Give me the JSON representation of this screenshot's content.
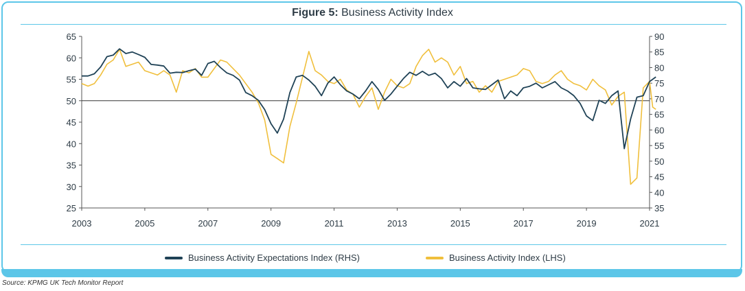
{
  "header": {
    "figure_label": "Figure 5:",
    "title": "Business Activity Index"
  },
  "source": "Source: KPMG UK Tech Monitor Report",
  "colors": {
    "expectations": "#1f4256",
    "activity": "#f0bf3c",
    "frame_accent": "#5cc6e8"
  },
  "chart_data": {
    "type": "line",
    "x_ticks": [
      "2003",
      "2005",
      "2007",
      "2009",
      "2011",
      "2013",
      "2015",
      "2017",
      "2019",
      "2021"
    ],
    "xlim": [
      2003,
      2021
    ],
    "left_axis": {
      "ticks": [
        "65",
        "60",
        "55",
        "50",
        "45",
        "40",
        "35",
        "30",
        "25"
      ],
      "ylim": [
        25,
        65
      ]
    },
    "right_axis": {
      "ticks": [
        "90",
        "85",
        "80",
        "75",
        "70",
        "65",
        "60",
        "55",
        "50",
        "45",
        "40",
        "35"
      ],
      "ylim": [
        35,
        90
      ]
    },
    "reference_line_left": 50,
    "legend_position": "bottom",
    "series": [
      {
        "name": "Business Activity Expectations Index (RHS)",
        "axis": "right",
        "points": [
          [
            2003.0,
            77.3
          ],
          [
            2003.2,
            77.3
          ],
          [
            2003.4,
            78.0
          ],
          [
            2003.6,
            80.2
          ],
          [
            2003.8,
            83.5
          ],
          [
            2004.0,
            84.0
          ],
          [
            2004.2,
            86.0
          ],
          [
            2004.4,
            84.5
          ],
          [
            2004.6,
            85.0
          ],
          [
            2004.8,
            84.2
          ],
          [
            2005.0,
            83.3
          ],
          [
            2005.2,
            81.0
          ],
          [
            2005.4,
            80.8
          ],
          [
            2005.6,
            80.5
          ],
          [
            2005.8,
            78.2
          ],
          [
            2006.0,
            78.5
          ],
          [
            2006.2,
            78.4
          ],
          [
            2006.4,
            79.0
          ],
          [
            2006.6,
            79.5
          ],
          [
            2006.8,
            77.5
          ],
          [
            2007.0,
            81.3
          ],
          [
            2007.2,
            82.0
          ],
          [
            2007.4,
            80.0
          ],
          [
            2007.6,
            78.3
          ],
          [
            2007.8,
            77.5
          ],
          [
            2008.0,
            76.0
          ],
          [
            2008.2,
            72.0
          ],
          [
            2008.4,
            71.0
          ],
          [
            2008.6,
            69.5
          ],
          [
            2008.8,
            66.5
          ],
          [
            2009.0,
            62.0
          ],
          [
            2009.2,
            59.0
          ],
          [
            2009.4,
            63.5
          ],
          [
            2009.6,
            72.0
          ],
          [
            2009.8,
            77.0
          ],
          [
            2010.0,
            77.5
          ],
          [
            2010.2,
            76.0
          ],
          [
            2010.4,
            74.0
          ],
          [
            2010.6,
            71.0
          ],
          [
            2010.8,
            75.0
          ],
          [
            2011.0,
            77.0
          ],
          [
            2011.2,
            74.5
          ],
          [
            2011.4,
            72.5
          ],
          [
            2011.6,
            71.5
          ],
          [
            2011.8,
            70.0
          ],
          [
            2012.0,
            72.5
          ],
          [
            2012.2,
            75.5
          ],
          [
            2012.4,
            73.0
          ],
          [
            2012.6,
            69.5
          ],
          [
            2012.8,
            71.5
          ],
          [
            2013.0,
            74.0
          ],
          [
            2013.2,
            76.5
          ],
          [
            2013.4,
            78.5
          ],
          [
            2013.6,
            77.5
          ],
          [
            2013.8,
            78.8
          ],
          [
            2014.0,
            77.5
          ],
          [
            2014.2,
            78.2
          ],
          [
            2014.4,
            76.5
          ],
          [
            2014.6,
            73.5
          ],
          [
            2014.8,
            75.5
          ],
          [
            2015.0,
            74.0
          ],
          [
            2015.2,
            76.5
          ],
          [
            2015.4,
            73.5
          ],
          [
            2015.6,
            73.2
          ],
          [
            2015.8,
            73.0
          ],
          [
            2016.0,
            74.5
          ],
          [
            2016.2,
            76.0
          ],
          [
            2016.4,
            70.0
          ],
          [
            2016.6,
            72.5
          ],
          [
            2016.8,
            71.0
          ],
          [
            2017.0,
            73.5
          ],
          [
            2017.2,
            74.0
          ],
          [
            2017.4,
            75.0
          ],
          [
            2017.6,
            73.5
          ],
          [
            2017.8,
            74.5
          ],
          [
            2018.0,
            75.5
          ],
          [
            2018.2,
            73.5
          ],
          [
            2018.4,
            72.5
          ],
          [
            2018.6,
            71.0
          ],
          [
            2018.8,
            68.5
          ],
          [
            2019.0,
            64.5
          ],
          [
            2019.2,
            63.0
          ],
          [
            2019.4,
            69.5
          ],
          [
            2019.6,
            68.5
          ],
          [
            2019.8,
            71.0
          ],
          [
            2020.0,
            72.5
          ],
          [
            2020.2,
            54.0
          ],
          [
            2020.4,
            63.5
          ],
          [
            2020.6,
            70.5
          ],
          [
            2020.8,
            71.0
          ],
          [
            2021.0,
            75.5
          ],
          [
            2021.2,
            77.0
          ]
        ]
      },
      {
        "name": "Business Activity Index (LHS)",
        "axis": "left",
        "points": [
          [
            2003.0,
            54.0
          ],
          [
            2003.2,
            53.4
          ],
          [
            2003.4,
            54.0
          ],
          [
            2003.6,
            56.0
          ],
          [
            2003.8,
            58.5
          ],
          [
            2004.0,
            59.5
          ],
          [
            2004.2,
            62.0
          ],
          [
            2004.4,
            58.0
          ],
          [
            2004.6,
            58.5
          ],
          [
            2004.8,
            59.0
          ],
          [
            2005.0,
            57.0
          ],
          [
            2005.2,
            56.5
          ],
          [
            2005.4,
            56.0
          ],
          [
            2005.6,
            57.0
          ],
          [
            2005.8,
            56.0
          ],
          [
            2006.0,
            52.0
          ],
          [
            2006.2,
            57.0
          ],
          [
            2006.4,
            56.5
          ],
          [
            2006.6,
            57.5
          ],
          [
            2006.8,
            55.5
          ],
          [
            2007.0,
            55.5
          ],
          [
            2007.2,
            57.5
          ],
          [
            2007.4,
            59.5
          ],
          [
            2007.6,
            59.0
          ],
          [
            2007.8,
            57.5
          ],
          [
            2008.0,
            56.0
          ],
          [
            2008.2,
            54.0
          ],
          [
            2008.4,
            52.0
          ],
          [
            2008.6,
            49.5
          ],
          [
            2008.8,
            45.5
          ],
          [
            2009.0,
            37.5
          ],
          [
            2009.2,
            36.5
          ],
          [
            2009.4,
            35.5
          ],
          [
            2009.6,
            44.0
          ],
          [
            2009.8,
            49.5
          ],
          [
            2010.0,
            55.5
          ],
          [
            2010.2,
            61.5
          ],
          [
            2010.4,
            57.0
          ],
          [
            2010.6,
            56.0
          ],
          [
            2010.8,
            54.5
          ],
          [
            2011.0,
            54.0
          ],
          [
            2011.2,
            55.0
          ],
          [
            2011.4,
            52.5
          ],
          [
            2011.6,
            51.5
          ],
          [
            2011.8,
            48.5
          ],
          [
            2012.0,
            51.0
          ],
          [
            2012.2,
            53.0
          ],
          [
            2012.4,
            48.0
          ],
          [
            2012.6,
            52.0
          ],
          [
            2012.8,
            55.0
          ],
          [
            2013.0,
            53.5
          ],
          [
            2013.2,
            53.0
          ],
          [
            2013.4,
            54.0
          ],
          [
            2013.6,
            58.0
          ],
          [
            2013.8,
            60.5
          ],
          [
            2014.0,
            62.0
          ],
          [
            2014.2,
            59.0
          ],
          [
            2014.4,
            60.0
          ],
          [
            2014.6,
            59.0
          ],
          [
            2014.8,
            56.0
          ],
          [
            2015.0,
            58.0
          ],
          [
            2015.2,
            54.0
          ],
          [
            2015.4,
            54.5
          ],
          [
            2015.6,
            52.0
          ],
          [
            2015.8,
            53.5
          ],
          [
            2016.0,
            52.0
          ],
          [
            2016.2,
            54.5
          ],
          [
            2016.4,
            55.0
          ],
          [
            2016.6,
            55.5
          ],
          [
            2016.8,
            56.0
          ],
          [
            2017.0,
            57.5
          ],
          [
            2017.2,
            57.0
          ],
          [
            2017.4,
            54.5
          ],
          [
            2017.6,
            54.0
          ],
          [
            2017.8,
            54.5
          ],
          [
            2018.0,
            56.0
          ],
          [
            2018.2,
            57.0
          ],
          [
            2018.4,
            55.0
          ],
          [
            2018.6,
            54.0
          ],
          [
            2018.8,
            53.5
          ],
          [
            2019.0,
            52.5
          ],
          [
            2019.2,
            55.0
          ],
          [
            2019.4,
            53.5
          ],
          [
            2019.6,
            52.5
          ],
          [
            2019.8,
            49.0
          ],
          [
            2020.0,
            51.0
          ],
          [
            2020.2,
            52.0
          ],
          [
            2020.4,
            30.5
          ],
          [
            2020.6,
            32.0
          ],
          [
            2020.8,
            53.0
          ],
          [
            2021.0,
            54.5
          ],
          [
            2021.1,
            48.5
          ],
          [
            2021.2,
            48.0
          ]
        ]
      }
    ]
  }
}
